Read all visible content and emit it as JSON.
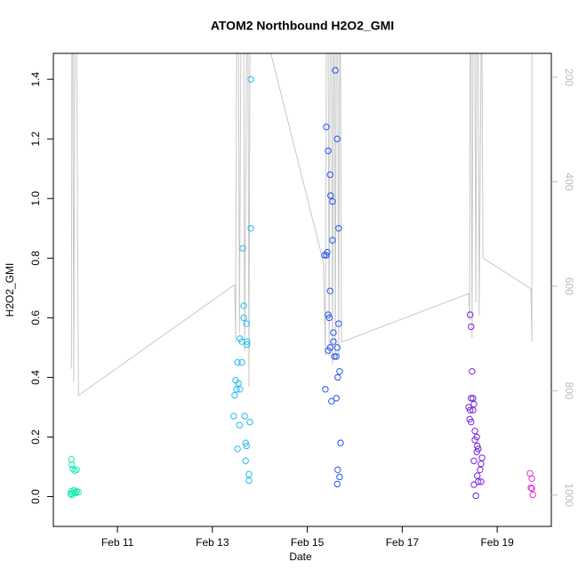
{
  "chart_data": {
    "type": "scatter",
    "title": "ATOM2 Northbound H2O2_GMI",
    "xlabel": "Date",
    "ylabel": "H2O2_GMI",
    "xlim": [
      9.65,
      20.14
    ],
    "xticks": [
      {
        "value": 11,
        "label": "Feb 11"
      },
      {
        "value": 13,
        "label": "Feb 13"
      },
      {
        "value": 15,
        "label": "Feb 15"
      },
      {
        "value": 17,
        "label": "Feb 17"
      },
      {
        "value": 19,
        "label": "Feb 19"
      }
    ],
    "ylim": [
      -0.1,
      1.487
    ],
    "yticks": [
      {
        "value": 0,
        "label": "0.0"
      },
      0.2,
      0.4,
      0.6,
      0.8,
      {
        "value": 1,
        "label": "1.0"
      },
      1.2,
      1.4
    ],
    "y2lim": [
      1060,
      154
    ],
    "y2ticks": [
      200,
      400,
      600,
      800,
      1000
    ],
    "y2_color": "#bbbbbb",
    "series": [
      {
        "type": "line",
        "axis": "y2",
        "color": "#c8c8c8",
        "x": [
          10.03,
          10.04,
          10.06,
          10.08,
          10.1,
          10.14,
          10.18,
          13.47,
          13.49,
          13.51,
          13.55,
          13.57,
          13.6,
          13.66,
          13.68,
          13.72,
          13.75,
          13.77,
          13.79,
          14.22,
          15.34,
          15.38,
          15.4,
          15.44,
          15.46,
          15.48,
          15.51,
          15.53,
          15.55,
          15.57,
          15.59,
          15.61,
          15.64,
          15.66,
          15.68,
          15.7,
          15.72,
          18.4,
          18.42,
          18.43,
          18.45,
          18.47,
          18.49,
          18.53,
          18.55,
          18.57,
          18.6,
          18.62,
          18.66,
          18.68,
          18.7,
          19.71,
          19.73,
          19.73
        ],
        "values": [
          758,
          150,
          150,
          784,
          150,
          150,
          809,
          597,
          707,
          150,
          150,
          690,
          150,
          150,
          724,
          150,
          150,
          792,
          150,
          150,
          554,
          733,
          150,
          150,
          733,
          150,
          150,
          750,
          150,
          150,
          741,
          150,
          150,
          733,
          150,
          150,
          707,
          614,
          665,
          150,
          150,
          699,
          150,
          150,
          631,
          150,
          150,
          656,
          150,
          150,
          546,
          605,
          707,
          150
        ]
      },
      {
        "type": "scatter",
        "color": "#1de9b6",
        "x": [
          10.03,
          10.04,
          10.06,
          10.1,
          10.14,
          10.03,
          10.06,
          10.1,
          10.14,
          10.18,
          10.04,
          10.08,
          10.12,
          10.01
        ],
        "values": [
          0.125,
          0.107,
          0.093,
          0.087,
          0.09,
          0.018,
          0.012,
          0.015,
          0.018,
          0.015,
          0.006,
          0.021,
          0.012,
          0.009
        ]
      },
      {
        "type": "scatter",
        "color": "#22bbee",
        "x": [
          13.81,
          13.81,
          13.64,
          13.66,
          13.66,
          13.72,
          13.58,
          13.62,
          13.73,
          13.73,
          13.53,
          13.62,
          13.49,
          13.51,
          13.58,
          13.55,
          13.47,
          13.45,
          13.68,
          13.79,
          13.57,
          13.7,
          13.72,
          13.53,
          13.7,
          13.77,
          13.77
        ],
        "values": [
          1.4,
          0.9,
          0.833,
          0.64,
          0.6,
          0.58,
          0.53,
          0.52,
          0.52,
          0.51,
          0.45,
          0.45,
          0.39,
          0.36,
          0.36,
          0.38,
          0.34,
          0.27,
          0.27,
          0.25,
          0.24,
          0.18,
          0.17,
          0.16,
          0.12,
          0.075,
          0.054
        ]
      },
      {
        "type": "scatter",
        "color": "#2255ee",
        "x": [
          15.59,
          15.4,
          15.63,
          15.44,
          15.48,
          15.49,
          15.53,
          15.66,
          15.53,
          15.4,
          15.42,
          15.36,
          15.48,
          15.44,
          15.46,
          15.66,
          15.55,
          15.55,
          15.48,
          15.63,
          15.44,
          15.57,
          15.61,
          15.68,
          15.64,
          15.38,
          15.51,
          15.61,
          15.7,
          15.64,
          15.68,
          15.63
        ],
        "values": [
          1.43,
          1.24,
          1.2,
          1.16,
          1.08,
          1.01,
          0.99,
          0.9,
          0.86,
          0.81,
          0.82,
          0.81,
          0.69,
          0.61,
          0.6,
          0.58,
          0.55,
          0.52,
          0.5,
          0.5,
          0.49,
          0.47,
          0.47,
          0.42,
          0.4,
          0.36,
          0.32,
          0.33,
          0.18,
          0.09,
          0.066,
          0.042
        ]
      },
      {
        "type": "scatter",
        "color": "#7722dd",
        "x": [
          18.43,
          18.45,
          18.47,
          18.45,
          18.49,
          18.51,
          18.4,
          18.49,
          18.43,
          18.42,
          18.45,
          18.53,
          18.57,
          18.53,
          18.58,
          18.6,
          18.66,
          18.68,
          18.64,
          18.51,
          18.57,
          18.58,
          18.6,
          18.66,
          18.51,
          18.55
        ],
        "values": [
          0.61,
          0.57,
          0.42,
          0.33,
          0.33,
          0.31,
          0.3,
          0.29,
          0.29,
          0.26,
          0.25,
          0.22,
          0.2,
          0.19,
          0.17,
          0.16,
          0.11,
          0.13,
          0.09,
          0.12,
          0.15,
          0.07,
          0.05,
          0.05,
          0.04,
          0.003
        ]
      },
      {
        "type": "scatter",
        "color": "#dd33dd",
        "x": [
          19.69,
          19.73,
          19.71,
          19.73,
          19.75
        ],
        "values": [
          0.078,
          0.06,
          0.03,
          0.027,
          0.006
        ]
      }
    ]
  }
}
